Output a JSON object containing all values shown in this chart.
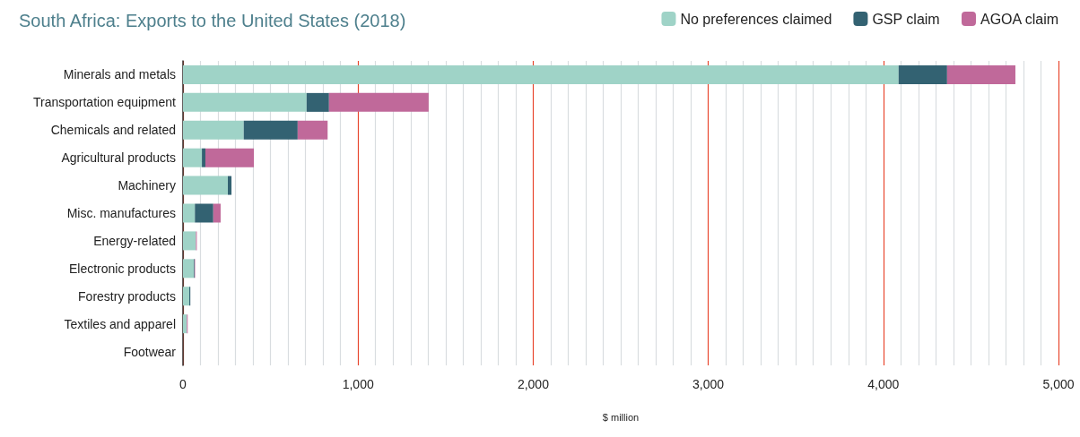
{
  "chart_data": {
    "type": "bar",
    "orientation": "horizontal",
    "stacked": true,
    "title": "South Africa: Exports to the United States (2018)",
    "xlabel": "$ million",
    "categories": [
      "Minerals and metals",
      "Transportation equipment",
      "Chemicals and related",
      "Agricultural products",
      "Machinery",
      "Misc. manufactures",
      "Energy-related",
      "Electronic products",
      "Forestry products",
      "Textiles and apparel",
      "Footwear"
    ],
    "series": [
      {
        "name": "No preferences claimed",
        "color": "#9fd3c7",
        "values": [
          4087,
          706,
          347,
          108,
          256,
          68,
          74,
          62,
          36,
          22,
          null
        ]
      },
      {
        "name": "GSP claim",
        "color": "#336272",
        "values": [
          277,
          128,
          308,
          20,
          21,
          105,
          0,
          4,
          6,
          0,
          0
        ]
      },
      {
        "name": "AGOA claim",
        "color": "#c0699a",
        "values": [
          390,
          569,
          171,
          277,
          0,
          42,
          5,
          3,
          0,
          5,
          null
        ]
      }
    ],
    "xlim": [
      0,
      5000
    ],
    "xticks": [
      0,
      {
        "value": 100,
        "label": null
      },
      {
        "value": 200,
        "label": null
      },
      {
        "value": 300,
        "label": null
      },
      {
        "value": 400,
        "label": null
      },
      {
        "value": 500,
        "label": null
      },
      {
        "value": 600,
        "label": null
      },
      {
        "value": 700,
        "label": null
      },
      {
        "value": 800,
        "label": null
      },
      {
        "value": 900,
        "label": null
      },
      {
        "value": 1000,
        "label": "1,000"
      },
      {
        "value": 1100,
        "label": null
      },
      {
        "value": 1200,
        "label": null
      },
      {
        "value": 1300,
        "label": null
      },
      {
        "value": 1400,
        "label": null
      },
      {
        "value": 1500,
        "label": null
      },
      {
        "value": 1600,
        "label": null
      },
      {
        "value": 1700,
        "label": null
      },
      {
        "value": 1800,
        "label": null
      },
      {
        "value": 1900,
        "label": null
      },
      {
        "value": 2000,
        "label": "2,000"
      },
      {
        "value": 2100,
        "label": null
      },
      {
        "value": 2200,
        "label": null
      },
      {
        "value": 2300,
        "label": null
      },
      {
        "value": 2400,
        "label": null
      },
      {
        "value": 2500,
        "label": null
      },
      {
        "value": 2600,
        "label": null
      },
      {
        "value": 2700,
        "label": null
      },
      {
        "value": 2800,
        "label": null
      },
      {
        "value": 2900,
        "label": null
      },
      {
        "value": 3000,
        "label": "3,000"
      },
      {
        "value": 3100,
        "label": null
      },
      {
        "value": 3200,
        "label": null
      },
      {
        "value": 3300,
        "label": null
      },
      {
        "value": 3400,
        "label": null
      },
      {
        "value": 3500,
        "label": null
      },
      {
        "value": 3600,
        "label": null
      },
      {
        "value": 3700,
        "label": null
      },
      {
        "value": 3800,
        "label": null
      },
      {
        "value": 3900,
        "label": null
      },
      {
        "value": 4000,
        "label": "4,000"
      },
      {
        "value": 4100,
        "label": null
      },
      {
        "value": 4200,
        "label": null
      },
      {
        "value": 4300,
        "label": null
      },
      {
        "value": 4400,
        "label": null
      },
      {
        "value": 4500,
        "label": null
      },
      {
        "value": 4600,
        "label": null
      },
      {
        "value": 4700,
        "label": null
      },
      {
        "value": 4800,
        "label": null
      },
      {
        "value": 4900,
        "label": null
      },
      {
        "value": 5000,
        "label": "5,000"
      }
    ],
    "grid": "x",
    "legend": "top right"
  }
}
